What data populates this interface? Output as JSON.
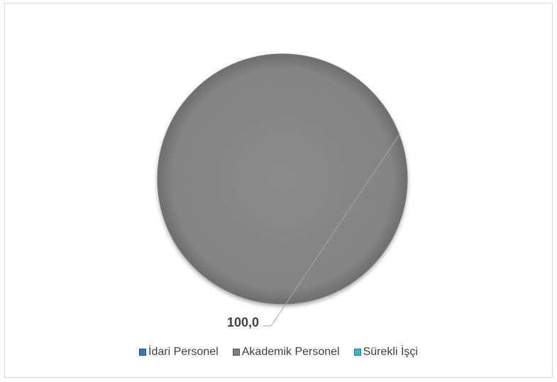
{
  "chart_data": {
    "type": "pie",
    "categories": [
      "İdari Personel",
      "Akademik Personel",
      "Sürekli İşçi"
    ],
    "values": [
      0,
      100.0,
      0
    ],
    "data_labels": [
      "",
      "100,0",
      ""
    ],
    "legend_position": "bottom",
    "colors": [
      "#3c78c3",
      "#808080",
      "#3fb8cc"
    ]
  }
}
